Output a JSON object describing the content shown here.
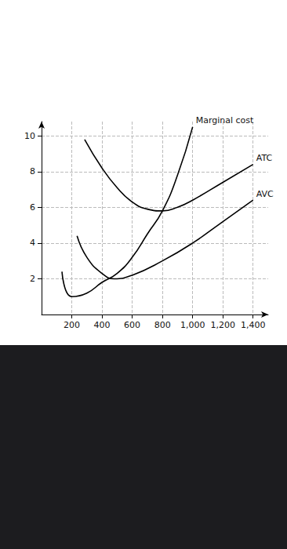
{
  "chart_data": {
    "type": "line",
    "series": [
      {
        "name": "Marginal cost",
        "color": "#000000",
        "x": [
          135,
          200,
          300,
          400,
          500,
          600,
          700,
          800,
          900,
          1000
        ],
        "values": [
          2.4,
          1.0,
          1.2,
          1.8,
          2.3,
          3.2,
          4.5,
          5.8,
          7.8,
          10.5
        ]
      },
      {
        "name": "ATC",
        "color": "#000000",
        "x": [
          285,
          400,
          500,
          600,
          700,
          800,
          900,
          1000,
          1200,
          1400
        ],
        "values": [
          9.8,
          8.2,
          7.1,
          6.3,
          5.9,
          5.8,
          6.0,
          6.4,
          7.4,
          8.4
        ]
      },
      {
        "name": "AVC",
        "color": "#000000",
        "x": [
          235,
          300,
          400,
          480,
          600,
          800,
          1000,
          1200,
          1400
        ],
        "values": [
          4.4,
          3.2,
          2.3,
          2.0,
          2.2,
          3.0,
          4.0,
          5.2,
          6.4
        ]
      }
    ],
    "xlim": [
      0,
      1500
    ],
    "ylim": [
      0,
      10.8
    ],
    "xticks": [
      200,
      400,
      600,
      800,
      1000,
      1200,
      1400
    ],
    "yticks": [
      2,
      4,
      6,
      8,
      10
    ],
    "grid": true
  }
}
